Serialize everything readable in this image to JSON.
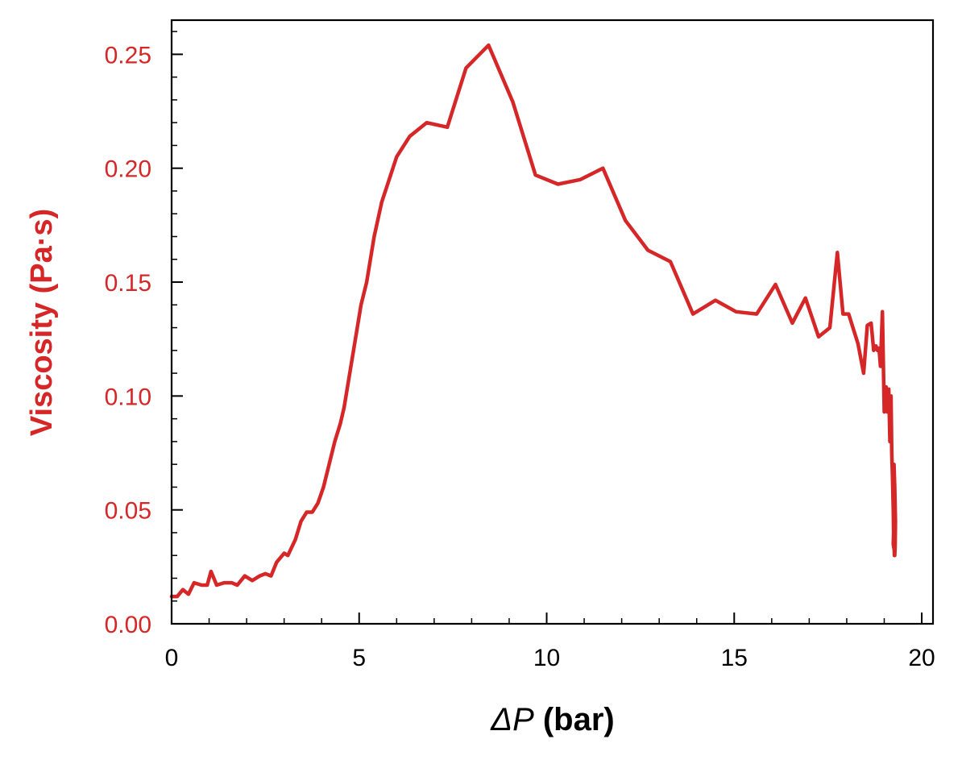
{
  "chart_data": {
    "type": "line",
    "title": "",
    "xlabel_symbol": "ΔP",
    "xlabel_unit": " (bar)",
    "ylabel": "Viscosity (Pa·s)",
    "xlim": [
      0,
      20.3
    ],
    "ylim": [
      0,
      0.265
    ],
    "xticks": [
      0,
      5,
      10,
      15,
      20
    ],
    "xtick_labels": [
      "0",
      "5",
      "10",
      "15",
      "20"
    ],
    "yticks": [
      0,
      0.05,
      0.1,
      0.15,
      0.2,
      0.25
    ],
    "ytick_labels": [
      "0.00",
      "0.05",
      "0.10",
      "0.15",
      "0.20",
      "0.25"
    ],
    "grid": false,
    "legend": "none",
    "colors": {
      "series": "#d62728",
      "ylabel": "#d62728",
      "ytick_labels": "#d62728",
      "axes": "#000000"
    },
    "series": [
      {
        "x": [
          0.0,
          0.15,
          0.3,
          0.45,
          0.6,
          0.8,
          0.95,
          1.05,
          1.2,
          1.4,
          1.6,
          1.75,
          1.95,
          2.15,
          2.35,
          2.5,
          2.65,
          2.8,
          3.0,
          3.1,
          3.3,
          3.45,
          3.6,
          3.75,
          3.9,
          4.05,
          4.2,
          4.35,
          4.5,
          4.6,
          4.75,
          4.9,
          5.05,
          5.2,
          5.4,
          5.6,
          5.8,
          6.0,
          6.35,
          6.8,
          7.35,
          7.85,
          8.45,
          9.1,
          9.7,
          10.3,
          10.9,
          11.5,
          12.1,
          12.7,
          13.3,
          13.9,
          14.5,
          15.05,
          15.6,
          16.1,
          16.55,
          16.9,
          17.25,
          17.55,
          17.75,
          17.9,
          18.05,
          18.3,
          18.45,
          18.55,
          18.65,
          18.72,
          18.78,
          18.82,
          18.86,
          18.9,
          18.95,
          19.0,
          19.05,
          19.08,
          19.12,
          19.15,
          19.18,
          19.2,
          19.22,
          19.24,
          19.25,
          19.26,
          19.27,
          19.28,
          19.29,
          19.3,
          19.28,
          19.26,
          19.25,
          19.24,
          19.26,
          19.28,
          19.3
        ],
        "y": [
          0.012,
          0.012,
          0.015,
          0.013,
          0.018,
          0.017,
          0.017,
          0.023,
          0.017,
          0.018,
          0.018,
          0.017,
          0.021,
          0.019,
          0.021,
          0.022,
          0.021,
          0.027,
          0.031,
          0.03,
          0.037,
          0.045,
          0.049,
          0.049,
          0.053,
          0.06,
          0.07,
          0.08,
          0.088,
          0.095,
          0.11,
          0.125,
          0.14,
          0.15,
          0.17,
          0.185,
          0.195,
          0.205,
          0.214,
          0.22,
          0.218,
          0.244,
          0.254,
          0.229,
          0.197,
          0.193,
          0.195,
          0.2,
          0.177,
          0.164,
          0.159,
          0.136,
          0.142,
          0.137,
          0.136,
          0.149,
          0.132,
          0.143,
          0.126,
          0.13,
          0.163,
          0.136,
          0.136,
          0.123,
          0.11,
          0.131,
          0.132,
          0.12,
          0.122,
          0.12,
          0.121,
          0.113,
          0.137,
          0.093,
          0.104,
          0.093,
          0.103,
          0.08,
          0.1,
          0.075,
          0.065,
          0.05,
          0.04,
          0.035,
          0.03,
          0.03,
          0.034,
          0.045,
          0.06,
          0.07,
          0.04,
          0.035,
          0.033,
          0.038,
          0.042
        ]
      }
    ]
  }
}
